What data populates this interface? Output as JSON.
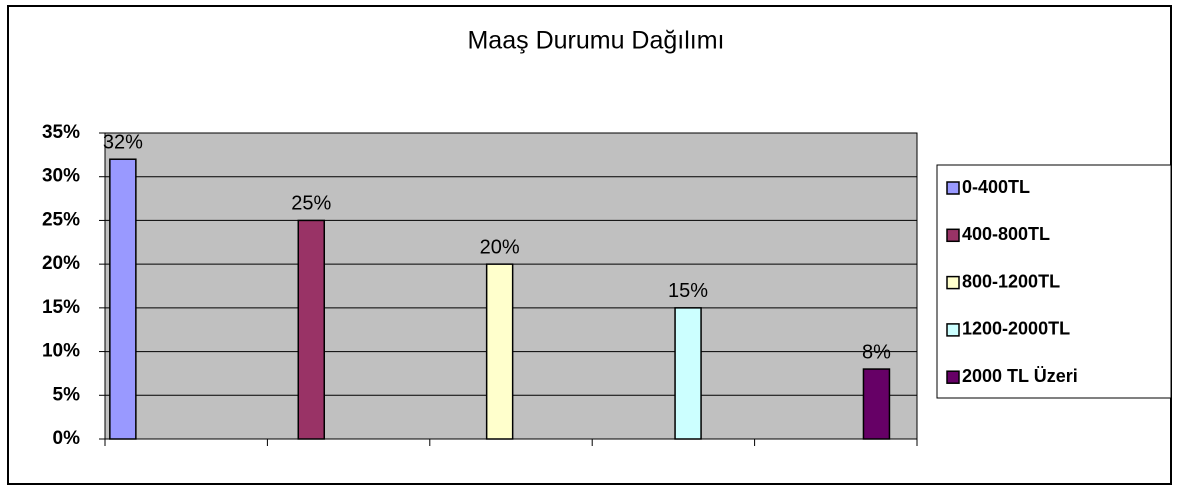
{
  "chart_data": {
    "type": "bar",
    "title": "Maaş  Durumu  Dağılımı",
    "categories": [
      null,
      null,
      null,
      null,
      null
    ],
    "series": [
      {
        "name": "0-400TL",
        "color": "#9999ff",
        "values": [
          32,
          null,
          null,
          null,
          null
        ],
        "value_labels": [
          "32%",
          null,
          null,
          null,
          null
        ]
      },
      {
        "name": "400-800TL",
        "color": "#993366",
        "values": [
          null,
          25,
          null,
          null,
          null
        ],
        "value_labels": [
          null,
          "25%",
          null,
          null,
          null
        ]
      },
      {
        "name": "800-1200TL",
        "color": "#ffffcc",
        "values": [
          null,
          null,
          20,
          null,
          null
        ],
        "value_labels": [
          null,
          null,
          "20%",
          null,
          null
        ]
      },
      {
        "name": "1200-2000TL",
        "color": "#ccffff",
        "values": [
          null,
          null,
          null,
          15,
          null
        ],
        "value_labels": [
          null,
          null,
          null,
          "15%",
          null
        ]
      },
      {
        "name": "2000 TL Üzeri",
        "color": "#660066",
        "values": [
          null,
          null,
          null,
          null,
          8
        ],
        "value_labels": [
          null,
          null,
          null,
          null,
          "8%"
        ]
      }
    ],
    "ylim": [
      0,
      35
    ],
    "yticks": [
      {
        "value": 0,
        "label": "0%"
      },
      {
        "value": 5,
        "label": "5%"
      },
      {
        "value": 10,
        "label": "10%"
      },
      {
        "value": 15,
        "label": "15%"
      },
      {
        "value": 20,
        "label": "20%"
      },
      {
        "value": 25,
        "label": "25%"
      },
      {
        "value": 30,
        "label": "30%"
      },
      {
        "value": 35,
        "label": "35%"
      }
    ],
    "grid": true,
    "legend": "right",
    "plot_background": "#c0c0c0"
  }
}
